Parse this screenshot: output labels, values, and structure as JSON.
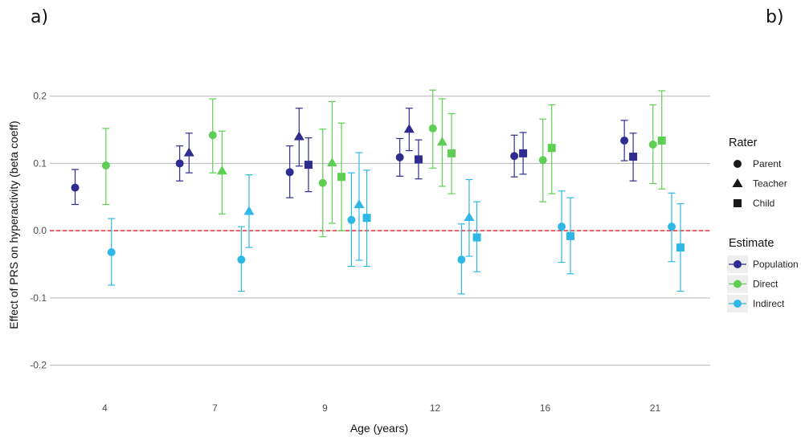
{
  "panel_labels": {
    "left": "a)",
    "right": "b)"
  },
  "chart_data": {
    "type": "scatter",
    "xlabel": "Age (years)",
    "ylabel": "Effect of PRS on hyperactivity (beta coeff)",
    "categories": [
      "4",
      "7",
      "9",
      "12",
      "16",
      "21"
    ],
    "yticks": [
      -0.2,
      -0.1,
      0.0,
      0.1,
      0.2
    ],
    "ytick_labels": [
      "-0.2",
      "-0.1",
      "0.0",
      "0.1",
      "0.2"
    ],
    "ylim": [
      -0.235,
      0.245
    ],
    "grid": "horizontal",
    "reference_line": {
      "y": 0.0,
      "color": "#e0202a",
      "style": "dashed"
    },
    "legend_placement": "right",
    "legend": {
      "rater_title": "Rater",
      "rater": [
        {
          "label": "Parent",
          "shape": "circle"
        },
        {
          "label": "Teacher",
          "shape": "triangle"
        },
        {
          "label": "Child",
          "shape": "square"
        }
      ],
      "estimate_title": "Estimate",
      "estimate": [
        {
          "label": "Population",
          "color": "#2e2d8f"
        },
        {
          "label": "Direct",
          "color": "#5ecf52"
        },
        {
          "label": "Indirect",
          "color": "#2fb8e6"
        }
      ]
    },
    "points": [
      {
        "age": "4",
        "rater": "Parent",
        "estimate": "Population",
        "value": 0.064,
        "lower": 0.039,
        "upper": 0.091
      },
      {
        "age": "4",
        "rater": "Parent",
        "estimate": "Indirect",
        "value": -0.032,
        "lower": -0.081,
        "upper": 0.018
      },
      {
        "age": "4",
        "rater": "Parent",
        "estimate": "Direct",
        "value": 0.097,
        "lower": 0.039,
        "upper": 0.152
      },
      {
        "age": "7",
        "rater": "Parent",
        "estimate": "Population",
        "value": 0.1,
        "lower": 0.074,
        "upper": 0.126
      },
      {
        "age": "7",
        "rater": "Teacher",
        "estimate": "Population",
        "value": 0.116,
        "lower": 0.086,
        "upper": 0.145
      },
      {
        "age": "7",
        "rater": "Parent",
        "estimate": "Direct",
        "value": 0.142,
        "lower": 0.086,
        "upper": 0.196
      },
      {
        "age": "7",
        "rater": "Teacher",
        "estimate": "Direct",
        "value": 0.089,
        "lower": 0.025,
        "upper": 0.148
      },
      {
        "age": "7",
        "rater": "Parent",
        "estimate": "Indirect",
        "value": -0.043,
        "lower": -0.09,
        "upper": 0.006
      },
      {
        "age": "7",
        "rater": "Teacher",
        "estimate": "Indirect",
        "value": 0.029,
        "lower": -0.025,
        "upper": 0.083
      },
      {
        "age": "9",
        "rater": "Parent",
        "estimate": "Population",
        "value": 0.087,
        "lower": 0.049,
        "upper": 0.126
      },
      {
        "age": "9",
        "rater": "Teacher",
        "estimate": "Population",
        "value": 0.14,
        "lower": 0.096,
        "upper": 0.182
      },
      {
        "age": "9",
        "rater": "Child",
        "estimate": "Population",
        "value": 0.098,
        "lower": 0.058,
        "upper": 0.138
      },
      {
        "age": "9",
        "rater": "Parent",
        "estimate": "Direct",
        "value": 0.071,
        "lower": -0.009,
        "upper": 0.151
      },
      {
        "age": "9",
        "rater": "Teacher",
        "estimate": "Direct",
        "value": 0.101,
        "lower": 0.011,
        "upper": 0.192
      },
      {
        "age": "9",
        "rater": "Child",
        "estimate": "Direct",
        "value": 0.08,
        "lower": 0.0,
        "upper": 0.16
      },
      {
        "age": "9",
        "rater": "Parent",
        "estimate": "Indirect",
        "value": 0.016,
        "lower": -0.053,
        "upper": 0.086
      },
      {
        "age": "9",
        "rater": "Teacher",
        "estimate": "Indirect",
        "value": 0.039,
        "lower": -0.044,
        "upper": 0.116
      },
      {
        "age": "9",
        "rater": "Child",
        "estimate": "Indirect",
        "value": 0.019,
        "lower": -0.053,
        "upper": 0.09
      },
      {
        "age": "12",
        "rater": "Parent",
        "estimate": "Population",
        "value": 0.109,
        "lower": 0.081,
        "upper": 0.137
      },
      {
        "age": "12",
        "rater": "Teacher",
        "estimate": "Population",
        "value": 0.151,
        "lower": 0.119,
        "upper": 0.182
      },
      {
        "age": "12",
        "rater": "Child",
        "estimate": "Population",
        "value": 0.106,
        "lower": 0.077,
        "upper": 0.135
      },
      {
        "age": "12",
        "rater": "Parent",
        "estimate": "Direct",
        "value": 0.152,
        "lower": 0.093,
        "upper": 0.209
      },
      {
        "age": "12",
        "rater": "Teacher",
        "estimate": "Direct",
        "value": 0.132,
        "lower": 0.066,
        "upper": 0.196
      },
      {
        "age": "12",
        "rater": "Child",
        "estimate": "Direct",
        "value": 0.115,
        "lower": 0.055,
        "upper": 0.174
      },
      {
        "age": "12",
        "rater": "Parent",
        "estimate": "Indirect",
        "value": -0.043,
        "lower": -0.094,
        "upper": 0.01
      },
      {
        "age": "12",
        "rater": "Teacher",
        "estimate": "Indirect",
        "value": 0.02,
        "lower": -0.038,
        "upper": 0.076
      },
      {
        "age": "12",
        "rater": "Child",
        "estimate": "Indirect",
        "value": -0.01,
        "lower": -0.061,
        "upper": 0.043
      },
      {
        "age": "16",
        "rater": "Parent",
        "estimate": "Population",
        "value": 0.111,
        "lower": 0.08,
        "upper": 0.142
      },
      {
        "age": "16",
        "rater": "Child",
        "estimate": "Population",
        "value": 0.115,
        "lower": 0.084,
        "upper": 0.146
      },
      {
        "age": "16",
        "rater": "Parent",
        "estimate": "Direct",
        "value": 0.105,
        "lower": 0.043,
        "upper": 0.166
      },
      {
        "age": "16",
        "rater": "Child",
        "estimate": "Direct",
        "value": 0.123,
        "lower": 0.055,
        "upper": 0.187
      },
      {
        "age": "16",
        "rater": "Parent",
        "estimate": "Indirect",
        "value": 0.006,
        "lower": -0.047,
        "upper": 0.059
      },
      {
        "age": "16",
        "rater": "Child",
        "estimate": "Indirect",
        "value": -0.008,
        "lower": -0.064,
        "upper": 0.049
      },
      {
        "age": "21",
        "rater": "Parent",
        "estimate": "Population",
        "value": 0.134,
        "lower": 0.104,
        "upper": 0.164
      },
      {
        "age": "21",
        "rater": "Child",
        "estimate": "Population",
        "value": 0.11,
        "lower": 0.074,
        "upper": 0.145
      },
      {
        "age": "21",
        "rater": "Parent",
        "estimate": "Direct",
        "value": 0.128,
        "lower": 0.07,
        "upper": 0.187
      },
      {
        "age": "21",
        "rater": "Child",
        "estimate": "Direct",
        "value": 0.134,
        "lower": 0.062,
        "upper": 0.208
      },
      {
        "age": "21",
        "rater": "Parent",
        "estimate": "Indirect",
        "value": 0.006,
        "lower": -0.046,
        "upper": 0.056
      },
      {
        "age": "21",
        "rater": "Child",
        "estimate": "Indirect",
        "value": -0.025,
        "lower": -0.09,
        "upper": 0.04
      }
    ]
  }
}
